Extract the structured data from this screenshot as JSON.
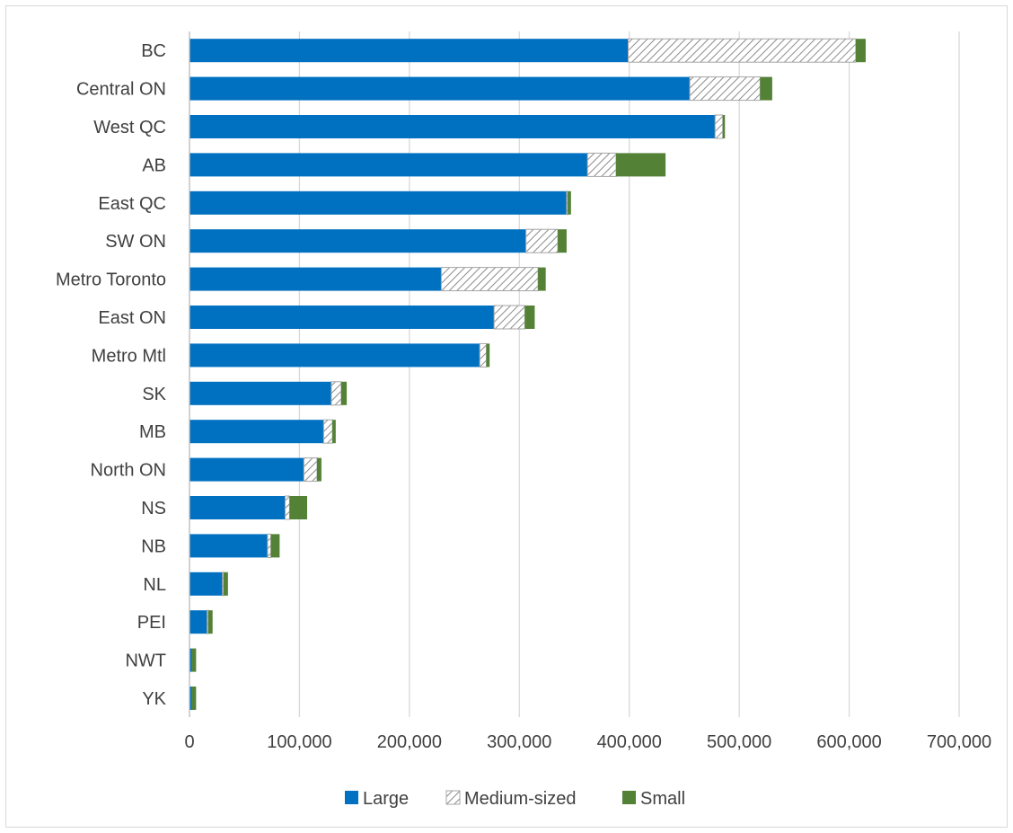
{
  "chart_data": {
    "type": "bar",
    "orientation": "horizontal",
    "stacked": true,
    "categories": [
      "BC",
      "Central ON",
      "West QC",
      "AB",
      "East QC",
      "SW ON",
      "Metro Toronto",
      "East ON",
      "Metro Mtl",
      "SK",
      "MB",
      "North ON",
      "NS",
      "NB",
      "NL",
      "PEI",
      "NWT",
      "YK"
    ],
    "series": [
      {
        "name": "Large",
        "color": "#0070c0",
        "pattern": "solid",
        "values": [
          399000,
          455000,
          478000,
          362000,
          343000,
          306000,
          229000,
          277000,
          264000,
          129000,
          122000,
          104000,
          87000,
          71000,
          30000,
          16000,
          2000,
          2000
        ]
      },
      {
        "name": "Medium-sized",
        "color": "#a6a6a6",
        "pattern": "diagonal-hatch",
        "values": [
          207000,
          64000,
          7000,
          26000,
          1000,
          29000,
          88000,
          28000,
          6000,
          9000,
          8000,
          12000,
          4000,
          3000,
          1000,
          1000,
          0,
          0
        ]
      },
      {
        "name": "Small",
        "color": "#538135",
        "pattern": "solid",
        "values": [
          9000,
          11000,
          2000,
          45000,
          3000,
          8000,
          7000,
          9000,
          3000,
          5000,
          3000,
          4000,
          16000,
          8000,
          4000,
          4000,
          4000,
          4000
        ]
      }
    ],
    "xlim": [
      0,
      700000
    ],
    "xticks": [
      0,
      100000,
      200000,
      300000,
      400000,
      500000,
      600000,
      700000
    ],
    "xtick_labels": [
      "0",
      "100,000",
      "200,000",
      "300,000",
      "400,000",
      "500,000",
      "600,000",
      "700,000"
    ],
    "grid": "vertical",
    "legend_position": "bottom",
    "title": "",
    "xlabel": "",
    "ylabel": ""
  }
}
